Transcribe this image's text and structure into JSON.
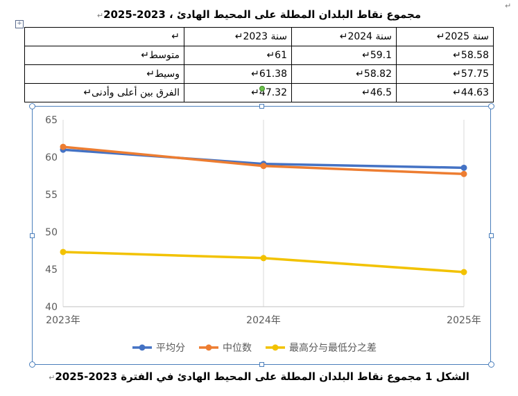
{
  "document": {
    "title": "مجموع نقاط البلدان المطلة على المحيط الهادئ ، 2023-2025",
    "paragraph_mark": "↵",
    "caption": "الشكل 1 مجموع نقاط البلدان المطلة على المحيط الهادئ في الفترة 2023-2025"
  },
  "table": {
    "headers": [
      "↵",
      "سنة 2023↵",
      "سنة 2024↵",
      "سنة 2025↵"
    ],
    "rows": [
      [
        "متوسط↵",
        "61↵",
        "59.1↵",
        "58.58↵"
      ],
      [
        "وسيط↵",
        "61.38↵",
        "58.82↵",
        "57.75↵"
      ],
      [
        "الفرق بين أعلى وأدنى↵",
        "47.32↵",
        "46.5↵",
        "44.63↵"
      ]
    ]
  },
  "chart_data": {
    "type": "line",
    "x": [
      "2023年",
      "2024年",
      "2025年"
    ],
    "ylim": [
      40,
      65
    ],
    "yticks": [
      40,
      45,
      50,
      55,
      60,
      65
    ],
    "legend_position": "bottom",
    "grid": "vertical",
    "series": [
      {
        "name": "平均分",
        "values": [
          61,
          59.1,
          58.58
        ],
        "color": "#4472C4"
      },
      {
        "name": "中位数",
        "values": [
          61.38,
          58.82,
          57.75
        ],
        "color": "#ED7D31"
      },
      {
        "name": "最高分与最低分之差",
        "values": [
          47.32,
          46.5,
          44.63
        ],
        "color": "#F2C200"
      }
    ]
  }
}
